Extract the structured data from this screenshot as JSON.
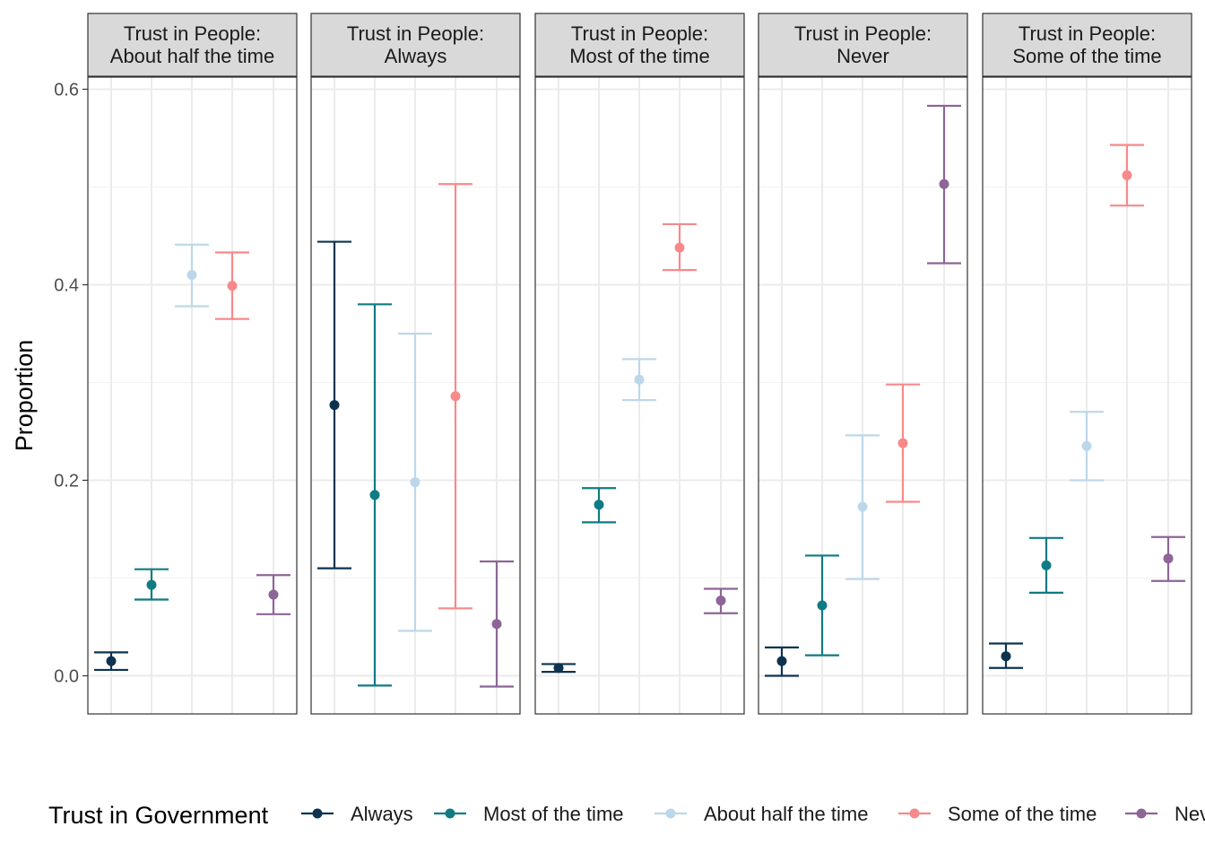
{
  "chart_data": {
    "type": "errorbar",
    "ylabel": "Proportion",
    "ylim": [
      -0.04,
      0.6
    ],
    "yticks": [
      0.0,
      0.2,
      0.4,
      0.6
    ],
    "ytick_labels": [
      "0.0",
      "0.2",
      "0.4",
      "0.6"
    ],
    "grid": true,
    "facet_prefix": "Trust in People:",
    "facets": [
      "About half the time",
      "Always",
      "Most of the time",
      "Never",
      "Some of the time"
    ],
    "categories": [
      "Always",
      "Most of the time",
      "About half the time",
      "Some of the time",
      "Never"
    ],
    "legend": {
      "title": "Trust in Government",
      "position": "bottom",
      "items": [
        "Always",
        "Most of the time",
        "About half the time",
        "Some of the time",
        "Never"
      ]
    },
    "colors": [
      "#0d3350",
      "#0f7b83",
      "#bdd7ea",
      "#f8898a",
      "#8d6597"
    ],
    "panels": [
      {
        "facet": "About half the time",
        "values": [
          0.015,
          0.093,
          0.41,
          0.399,
          0.083
        ],
        "lower": [
          0.006,
          0.078,
          0.378,
          0.365,
          0.063
        ],
        "upper": [
          0.024,
          0.109,
          0.441,
          0.433,
          0.103
        ]
      },
      {
        "facet": "Always",
        "values": [
          0.277,
          0.185,
          0.198,
          0.286,
          0.053
        ],
        "lower": [
          0.11,
          -0.01,
          0.046,
          0.069,
          -0.011
        ],
        "upper": [
          0.444,
          0.38,
          0.35,
          0.503,
          0.117
        ]
      },
      {
        "facet": "Most of the time",
        "values": [
          0.008,
          0.175,
          0.303,
          0.438,
          0.077
        ],
        "lower": [
          0.004,
          0.157,
          0.282,
          0.415,
          0.064
        ],
        "upper": [
          0.012,
          0.192,
          0.324,
          0.462,
          0.089
        ]
      },
      {
        "facet": "Never",
        "values": [
          0.015,
          0.072,
          0.173,
          0.238,
          0.503
        ],
        "lower": [
          0.0,
          0.021,
          0.099,
          0.178,
          0.422
        ],
        "upper": [
          0.029,
          0.123,
          0.246,
          0.298,
          0.583
        ]
      },
      {
        "facet": "Some of the time",
        "values": [
          0.02,
          0.113,
          0.235,
          0.512,
          0.12
        ],
        "lower": [
          0.008,
          0.085,
          0.2,
          0.481,
          0.097
        ],
        "upper": [
          0.033,
          0.141,
          0.27,
          0.543,
          0.142
        ]
      }
    ]
  }
}
